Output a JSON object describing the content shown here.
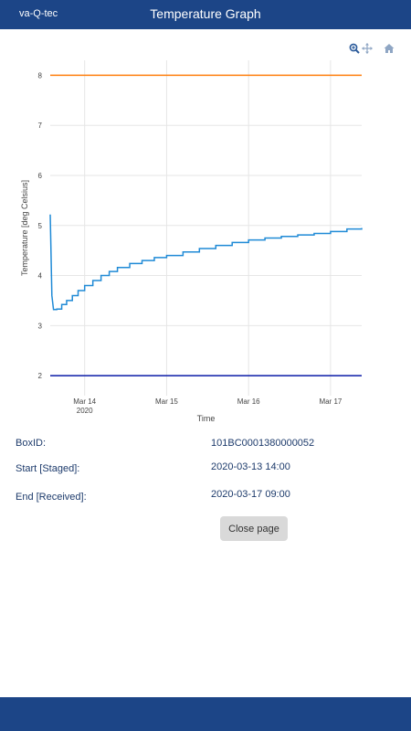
{
  "header": {
    "brand": "va-Q-tec",
    "title": "Temperature Graph"
  },
  "modebar": {
    "icons": [
      "zoom-icon",
      "pan-icon",
      "home-icon"
    ]
  },
  "info": {
    "boxid_label": "BoxID:",
    "boxid_value": "101BC0001380000052",
    "start_label": "Start [Staged]:",
    "start_value": "2020-03-13 14:00",
    "end_label": "End [Received]:",
    "end_value": "2020-03-17 09:00"
  },
  "close_label": "Close page",
  "colors": {
    "bar": "#1c4587",
    "upper": "#ff7f0e",
    "lower": "#0a1aa8",
    "series": "#1f8ad6"
  },
  "chart_data": {
    "type": "line",
    "xlabel": "Time",
    "ylabel": "Temperature [deg Celsius]",
    "ylim": [
      1.6,
      8.3
    ],
    "yticks": [
      2,
      3,
      4,
      5,
      6,
      7,
      8
    ],
    "xticks": [
      {
        "label": "Mar 14",
        "sub": "2020",
        "x": 1.0
      },
      {
        "label": "Mar 15",
        "sub": "",
        "x": 2.0
      },
      {
        "label": "Mar 16",
        "sub": "",
        "x": 3.0
      },
      {
        "label": "Mar 17",
        "sub": "",
        "x": 4.0
      }
    ],
    "xlim": [
      0.58,
      4.38
    ],
    "x_unit": "days since 2020-03-13",
    "grid": true,
    "series": [
      {
        "name": "upper",
        "x": [
          0.58,
          4.38
        ],
        "y": [
          8,
          8
        ]
      },
      {
        "name": "lower",
        "x": [
          0.58,
          4.38
        ],
        "y": [
          2,
          2
        ]
      },
      {
        "name": "temperature",
        "x": [
          0.58,
          0.6,
          0.62,
          0.66,
          0.72,
          0.78,
          0.85,
          0.92,
          1.0,
          1.1,
          1.2,
          1.3,
          1.4,
          1.55,
          1.7,
          1.85,
          2.0,
          2.2,
          2.4,
          2.6,
          2.8,
          3.0,
          3.2,
          3.4,
          3.6,
          3.8,
          4.0,
          4.2,
          4.38
        ],
        "y": [
          5.22,
          3.6,
          3.32,
          3.33,
          3.42,
          3.5,
          3.6,
          3.7,
          3.8,
          3.9,
          4.0,
          4.08,
          4.16,
          4.24,
          4.3,
          4.36,
          4.4,
          4.47,
          4.54,
          4.6,
          4.66,
          4.71,
          4.75,
          4.78,
          4.81,
          4.84,
          4.88,
          4.93,
          4.95
        ]
      }
    ]
  }
}
